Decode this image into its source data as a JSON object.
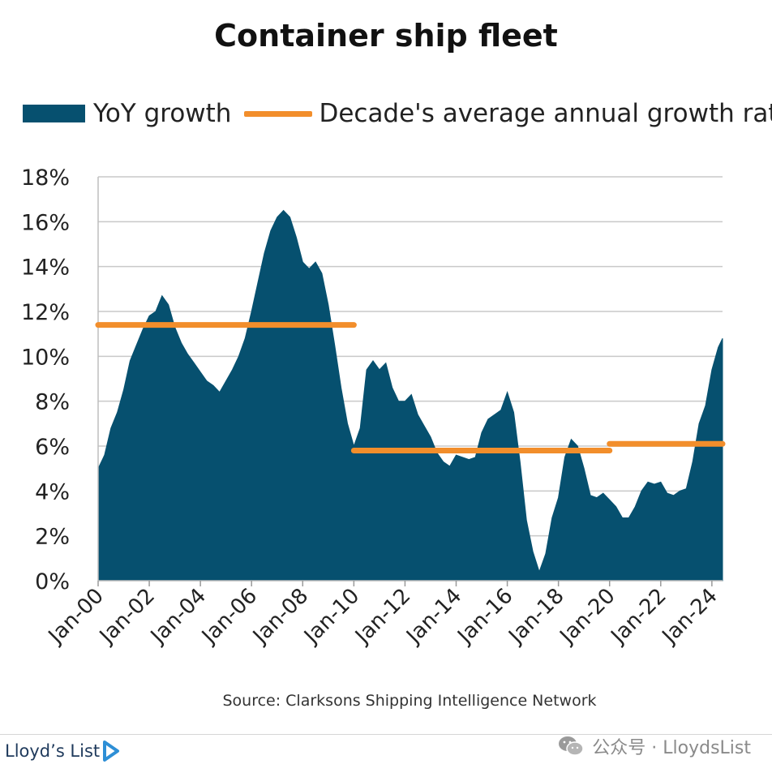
{
  "chart_data": {
    "type": "area",
    "title": "Container ship fleet",
    "source": "Source: Clarksons Shipping Intelligence Network",
    "y_ticks": [
      "0%",
      "2%",
      "4%",
      "6%",
      "8%",
      "10%",
      "12%",
      "14%",
      "16%",
      "18%"
    ],
    "ylim": [
      0,
      18
    ],
    "y_unit": "%",
    "grid": "horizontal",
    "legend_position": "top",
    "x_ticks": [
      "Jan-00",
      "Jan-02",
      "Jan-04",
      "Jan-06",
      "Jan-08",
      "Jan-10",
      "Jan-12",
      "Jan-14",
      "Jan-16",
      "Jan-18",
      "Jan-20",
      "Jan-22",
      "Jan-24"
    ],
    "x_range": [
      "Jan-00",
      "Jun-24"
    ],
    "series": [
      {
        "name": "YoY growth",
        "type": "area",
        "color": "#06506f",
        "points": [
          [
            "Jan-00",
            5.0
          ],
          [
            "Apr-00",
            5.6
          ],
          [
            "Jul-00",
            6.8
          ],
          [
            "Oct-00",
            7.5
          ],
          [
            "Jan-01",
            8.5
          ],
          [
            "Apr-01",
            9.8
          ],
          [
            "Jul-01",
            10.5
          ],
          [
            "Oct-01",
            11.2
          ],
          [
            "Jan-02",
            11.8
          ],
          [
            "Apr-02",
            12.0
          ],
          [
            "Jul-02",
            12.7
          ],
          [
            "Oct-02",
            12.3
          ],
          [
            "Jan-03",
            11.3
          ],
          [
            "Apr-03",
            10.6
          ],
          [
            "Jul-03",
            10.1
          ],
          [
            "Oct-03",
            9.7
          ],
          [
            "Jan-04",
            9.3
          ],
          [
            "Apr-04",
            8.9
          ],
          [
            "Jul-04",
            8.7
          ],
          [
            "Oct-04",
            8.4
          ],
          [
            "Jan-05",
            8.9
          ],
          [
            "Apr-05",
            9.4
          ],
          [
            "Jul-05",
            10.0
          ],
          [
            "Oct-05",
            10.8
          ],
          [
            "Jan-06",
            12.0
          ],
          [
            "Apr-06",
            13.3
          ],
          [
            "Jul-06",
            14.6
          ],
          [
            "Oct-06",
            15.6
          ],
          [
            "Jan-07",
            16.2
          ],
          [
            "Apr-07",
            16.5
          ],
          [
            "Jul-07",
            16.2
          ],
          [
            "Oct-07",
            15.3
          ],
          [
            "Jan-08",
            14.2
          ],
          [
            "Apr-08",
            13.9
          ],
          [
            "Jul-08",
            14.2
          ],
          [
            "Oct-08",
            13.7
          ],
          [
            "Jan-09",
            12.3
          ],
          [
            "Apr-09",
            10.5
          ],
          [
            "Jul-09",
            8.6
          ],
          [
            "Oct-09",
            7.0
          ],
          [
            "Jan-10",
            6.0
          ],
          [
            "Apr-10",
            6.8
          ],
          [
            "Jul-10",
            9.4
          ],
          [
            "Oct-10",
            9.8
          ],
          [
            "Jan-11",
            9.4
          ],
          [
            "Apr-11",
            9.7
          ],
          [
            "Jul-11",
            8.6
          ],
          [
            "Oct-11",
            8.0
          ],
          [
            "Jan-12",
            8.0
          ],
          [
            "Apr-12",
            8.3
          ],
          [
            "Jul-12",
            7.4
          ],
          [
            "Oct-12",
            6.9
          ],
          [
            "Jan-13",
            6.4
          ],
          [
            "Apr-13",
            5.7
          ],
          [
            "Jul-13",
            5.3
          ],
          [
            "Oct-13",
            5.1
          ],
          [
            "Jan-14",
            5.6
          ],
          [
            "Apr-14",
            5.5
          ],
          [
            "Jul-14",
            5.4
          ],
          [
            "Oct-14",
            5.5
          ],
          [
            "Jan-15",
            6.6
          ],
          [
            "Apr-15",
            7.2
          ],
          [
            "Jul-15",
            7.4
          ],
          [
            "Oct-15",
            7.6
          ],
          [
            "Jan-16",
            8.4
          ],
          [
            "Apr-16",
            7.5
          ],
          [
            "Jul-16",
            5.3
          ],
          [
            "Oct-16",
            2.7
          ],
          [
            "Jan-17",
            1.3
          ],
          [
            "Apr-17",
            0.4
          ],
          [
            "Jul-17",
            1.2
          ],
          [
            "Oct-17",
            2.8
          ],
          [
            "Jan-18",
            3.7
          ],
          [
            "Apr-18",
            5.5
          ],
          [
            "Jul-18",
            6.3
          ],
          [
            "Oct-18",
            6.0
          ],
          [
            "Jan-19",
            5.0
          ],
          [
            "Apr-19",
            3.8
          ],
          [
            "Jul-19",
            3.7
          ],
          [
            "Oct-19",
            3.9
          ],
          [
            "Jan-20",
            3.6
          ],
          [
            "Apr-20",
            3.3
          ],
          [
            "Jul-20",
            2.8
          ],
          [
            "Oct-20",
            2.8
          ],
          [
            "Jan-21",
            3.3
          ],
          [
            "Apr-21",
            4.0
          ],
          [
            "Jul-21",
            4.4
          ],
          [
            "Oct-21",
            4.3
          ],
          [
            "Jan-22",
            4.4
          ],
          [
            "Apr-22",
            3.9
          ],
          [
            "Jul-22",
            3.8
          ],
          [
            "Oct-22",
            4.0
          ],
          [
            "Jan-23",
            4.1
          ],
          [
            "Apr-23",
            5.3
          ],
          [
            "Jul-23",
            7.0
          ],
          [
            "Oct-23",
            7.8
          ],
          [
            "Jan-24",
            9.4
          ],
          [
            "Apr-24",
            10.4
          ],
          [
            "Jun-24",
            10.8
          ]
        ]
      },
      {
        "name": "Decade's average annual growth rate",
        "type": "step-line",
        "color": "#f28e2b",
        "segments": [
          {
            "from": "Jan-00",
            "to": "Jan-10",
            "value": 11.4
          },
          {
            "from": "Jan-10",
            "to": "Jan-20",
            "value": 5.8
          },
          {
            "from": "Jan-20",
            "to": "Jun-24",
            "value": 6.1
          }
        ]
      }
    ]
  },
  "footer": {
    "brand": "Lloyd’s List",
    "watermark": "公众号 · LloydsList"
  }
}
